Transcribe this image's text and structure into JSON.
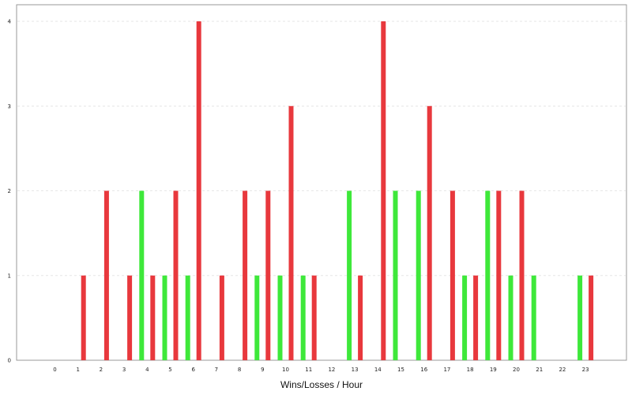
{
  "chart_data": {
    "type": "bar",
    "title": "",
    "xlabel": "Wins/Losses / Hour",
    "ylabel": "",
    "categories": [
      "0",
      "1",
      "2",
      "3",
      "4",
      "5",
      "6",
      "7",
      "8",
      "9",
      "10",
      "11",
      "12",
      "13",
      "14",
      "15",
      "16",
      "17",
      "18",
      "19",
      "20",
      "21",
      "22",
      "23"
    ],
    "series": [
      {
        "color": "#e8383d",
        "values": [
          0,
          1,
          2,
          1,
          1,
          2,
          4,
          1,
          2,
          2,
          3,
          1,
          0,
          1,
          4,
          0,
          3,
          2,
          1,
          2,
          2,
          0,
          0,
          1
        ]
      },
      {
        "color": "#3ee83a",
        "values": [
          0,
          0,
          0,
          0,
          2,
          1,
          1,
          0,
          0,
          1,
          1,
          1,
          0,
          2,
          0,
          2,
          2,
          0,
          1,
          2,
          1,
          1,
          0,
          1
        ]
      }
    ],
    "yticks": [
      0,
      1,
      2,
      3,
      4
    ],
    "ylim": [
      0,
      4
    ],
    "grid": true,
    "legend": "none",
    "colors": {
      "grid": "#e6e6e6",
      "axis": "#999999"
    }
  }
}
